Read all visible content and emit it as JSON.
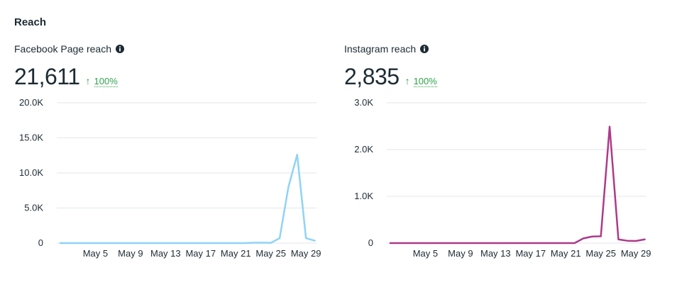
{
  "section": {
    "title": "Reach"
  },
  "colors": {
    "facebook_line": "#8fd3f7",
    "instagram_line": "#ad3a8a",
    "grid": "#e4e6eb",
    "positive": "#31a24c"
  },
  "facebook": {
    "title": "Facebook Page reach",
    "value": "21,611",
    "change_arrow": "↑",
    "change_pct": "100%",
    "info_icon": "info-icon"
  },
  "instagram": {
    "title": "Instagram reach",
    "value": "2,835",
    "change_arrow": "↑",
    "change_pct": "100%",
    "info_icon": "info-icon"
  },
  "chart_data": [
    {
      "type": "line",
      "title": "Facebook Page reach",
      "xlabel": "",
      "ylabel": "",
      "x": [
        1,
        2,
        3,
        4,
        5,
        6,
        7,
        8,
        9,
        10,
        11,
        12,
        13,
        14,
        15,
        16,
        17,
        18,
        19,
        20,
        21,
        22,
        23,
        24,
        25,
        26,
        27,
        28,
        29,
        30
      ],
      "series": [
        {
          "name": "Facebook Page reach",
          "values": [
            0,
            0,
            0,
            0,
            0,
            0,
            0,
            0,
            0,
            0,
            0,
            0,
            0,
            0,
            0,
            0,
            0,
            0,
            0,
            0,
            0,
            0,
            50,
            60,
            40,
            700,
            8000,
            12600,
            700,
            350
          ]
        }
      ],
      "ylim": [
        0,
        20000
      ],
      "yticks": [
        0,
        5000,
        10000,
        15000,
        20000
      ],
      "ytick_labels": [
        "0",
        "5.0K",
        "10.0K",
        "15.0K",
        "20.0K"
      ],
      "xticks": [
        5,
        9,
        13,
        17,
        21,
        25,
        29
      ],
      "xtick_labels": [
        "May 5",
        "May 9",
        "May 13",
        "May 17",
        "May 21",
        "May 25",
        "May 29"
      ],
      "grid": true
    },
    {
      "type": "line",
      "title": "Instagram reach",
      "xlabel": "",
      "ylabel": "",
      "x": [
        1,
        2,
        3,
        4,
        5,
        6,
        7,
        8,
        9,
        10,
        11,
        12,
        13,
        14,
        15,
        16,
        17,
        18,
        19,
        20,
        21,
        22,
        23,
        24,
        25,
        26,
        27,
        28,
        29,
        30
      ],
      "series": [
        {
          "name": "Instagram reach",
          "values": [
            0,
            0,
            0,
            0,
            0,
            0,
            0,
            0,
            0,
            0,
            0,
            0,
            0,
            0,
            0,
            0,
            0,
            0,
            0,
            0,
            0,
            0,
            100,
            140,
            145,
            2490,
            80,
            50,
            45,
            80
          ]
        }
      ],
      "ylim": [
        0,
        3000
      ],
      "yticks": [
        0,
        1000,
        2000,
        3000
      ],
      "ytick_labels": [
        "0",
        "1.0K",
        "2.0K",
        "3.0K"
      ],
      "xticks": [
        5,
        9,
        13,
        17,
        21,
        25,
        29
      ],
      "xtick_labels": [
        "May 5",
        "May 9",
        "May 13",
        "May 17",
        "May 21",
        "May 25",
        "May 29"
      ],
      "grid": true
    }
  ]
}
